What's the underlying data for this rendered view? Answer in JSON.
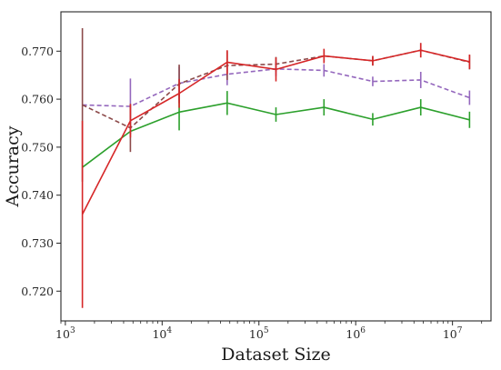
{
  "chart_data": {
    "type": "line",
    "title": "",
    "xlabel": "Dataset Size",
    "ylabel": "Accuracy",
    "xscale": "log",
    "xlim": [
      900,
      25000000
    ],
    "ylim": [
      0.7138,
      0.7782
    ],
    "grid": false,
    "x": [
      1500,
      4700,
      15000,
      47000,
      150000,
      470000,
      1500000,
      4700000,
      15000000
    ],
    "x_ticks": [
      {
        "value": 1000,
        "base": "10",
        "exp": "3"
      },
      {
        "value": 10000,
        "base": "10",
        "exp": "4"
      },
      {
        "value": 100000,
        "base": "10",
        "exp": "5"
      },
      {
        "value": 1000000,
        "base": "10",
        "exp": "6"
      },
      {
        "value": 10000000,
        "base": "10",
        "exp": "7"
      }
    ],
    "y_ticks": [
      "0.720",
      "0.730",
      "0.740",
      "0.750",
      "0.760",
      "0.770"
    ],
    "series": [
      {
        "color": "#2ca02c",
        "dashed": false,
        "values": [
          0.7458,
          0.7533,
          0.7573,
          0.7592,
          0.7568,
          0.7583,
          0.7558,
          0.7583,
          0.7557
        ],
        "errors": [
          0.0,
          0.0,
          0.0038,
          0.0025,
          0.0015,
          0.0017,
          0.0013,
          0.0017,
          0.0017
        ]
      },
      {
        "color": "#9467bd",
        "dashed": true,
        "values": [
          0.7588,
          0.7585,
          0.7633,
          0.7652,
          0.7663,
          0.766,
          0.7637,
          0.764,
          0.7603
        ],
        "errors": [
          0.0,
          0.0058,
          0.0035,
          0.0023,
          0.0015,
          0.0013,
          0.001,
          0.0017,
          0.0015
        ]
      },
      {
        "color": "#8c4a4a",
        "dashed": true,
        "values": [
          0.7588,
          0.754,
          0.7632,
          0.767,
          0.7673,
          0.769,
          0.768,
          0.7702,
          0.7677
        ],
        "errors": [
          0.016,
          0.005,
          0.004,
          0.003,
          0.0015,
          0.0013,
          0.001,
          0.0015,
          0.0015
        ]
      },
      {
        "color": "#d62728",
        "dashed": false,
        "values": [
          0.736,
          0.7555,
          0.7612,
          0.7677,
          0.7662,
          0.769,
          0.768,
          0.7702,
          0.7678
        ],
        "errors": [
          0.0195,
          0.0035,
          0.003,
          0.0025,
          0.0025,
          0.0015,
          0.001,
          0.0015,
          0.0015
        ]
      }
    ]
  }
}
